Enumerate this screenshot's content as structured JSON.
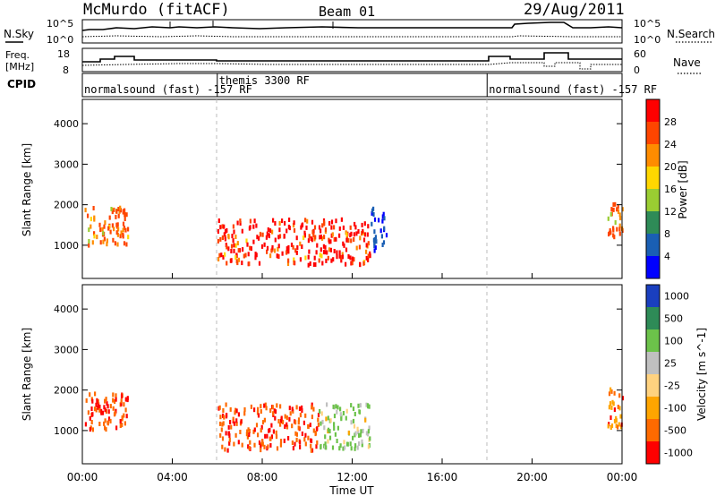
{
  "header": {
    "station": "McMurdo (fitACF)",
    "beam": "Beam 01",
    "date": "29/Aug/2011"
  },
  "noise_panel": {
    "left_label": "N.Sky",
    "right_label": "N.Search",
    "left_ticks": [
      "10^5",
      "10^0"
    ],
    "right_ticks": [
      "10^5",
      "10^0"
    ]
  },
  "freq_panel": {
    "left_label_top": "Freq.",
    "left_label_bottom": "[MHz]",
    "right_label": "Nave",
    "left_ticks": [
      "18",
      "8"
    ],
    "right_ticks": [
      "60",
      "0"
    ]
  },
  "cpid_panel": {
    "label": "CPID",
    "segments": [
      {
        "label": "normalsound (fast) -157 RF",
        "start_hour": 0,
        "end_hour": 6
      },
      {
        "label": "themis 3300 RF",
        "start_hour": 6,
        "end_hour": 18
      },
      {
        "label": "normalsound (fast) -157 RF",
        "start_hour": 18,
        "end_hour": 24
      }
    ]
  },
  "chart_data": [
    {
      "type": "heatmap",
      "name": "power",
      "ylabel": "Slant Range [km]",
      "y_ticks": [
        "1000",
        "2000",
        "3000",
        "4000"
      ],
      "ylim": [
        180,
        4600
      ],
      "colorbar_label": "Power [dB]",
      "colorbar_ticks": [
        "4",
        "8",
        "12",
        "16",
        "20",
        "24",
        "28"
      ],
      "colors": [
        "#0000ff",
        "#1a5fb4",
        "#2e8b57",
        "#9acd32",
        "#ffd700",
        "#ff8c00",
        "#ff4500",
        "#ff0000"
      ],
      "features": [
        {
          "t0": 0.1,
          "t1": 2.0,
          "r0": 1050,
          "r1": 2000,
          "level": 6
        },
        {
          "t0": 6.0,
          "t1": 12.8,
          "r0": 560,
          "r1": 1700,
          "level": 7
        },
        {
          "t0": 12.8,
          "t1": 13.5,
          "r0": 900,
          "r1": 2100,
          "level": 1
        },
        {
          "t0": 23.3,
          "t1": 24.0,
          "r0": 1100,
          "r1": 2100,
          "level": 6
        }
      ]
    },
    {
      "type": "heatmap",
      "name": "velocity",
      "xlabel": "Time UT",
      "ylabel": "Slant Range [km]",
      "y_ticks": [
        "1000",
        "2000",
        "3000",
        "4000"
      ],
      "ylim": [
        180,
        4600
      ],
      "x_ticks": [
        "00:00",
        "04:00",
        "08:00",
        "12:00",
        "16:00",
        "20:00",
        "00:00"
      ],
      "xlim": [
        0,
        24
      ],
      "colorbar_label": "Velocity [m s^-1]",
      "colorbar_ticks": [
        "1000",
        "500",
        "100",
        "25",
        "-25",
        "-100",
        "-500",
        "-1000"
      ],
      "colors": [
        "#1a3fbf",
        "#2e8b57",
        "#6cc24a",
        "#c0c0c0",
        "#ffd27f",
        "#ffa500",
        "#ff6a00",
        "#ff0000"
      ],
      "features": [
        {
          "t0": 0.1,
          "t1": 2.0,
          "r0": 1050,
          "r1": 2000,
          "level": 1
        },
        {
          "t0": 6.0,
          "t1": 10.5,
          "r0": 560,
          "r1": 1700,
          "level": 1
        },
        {
          "t0": 10.5,
          "t1": 12.8,
          "r0": 600,
          "r1": 1700,
          "level": 5
        },
        {
          "t0": 23.3,
          "t1": 24.0,
          "r0": 1100,
          "r1": 2100,
          "level": 2
        }
      ]
    }
  ]
}
